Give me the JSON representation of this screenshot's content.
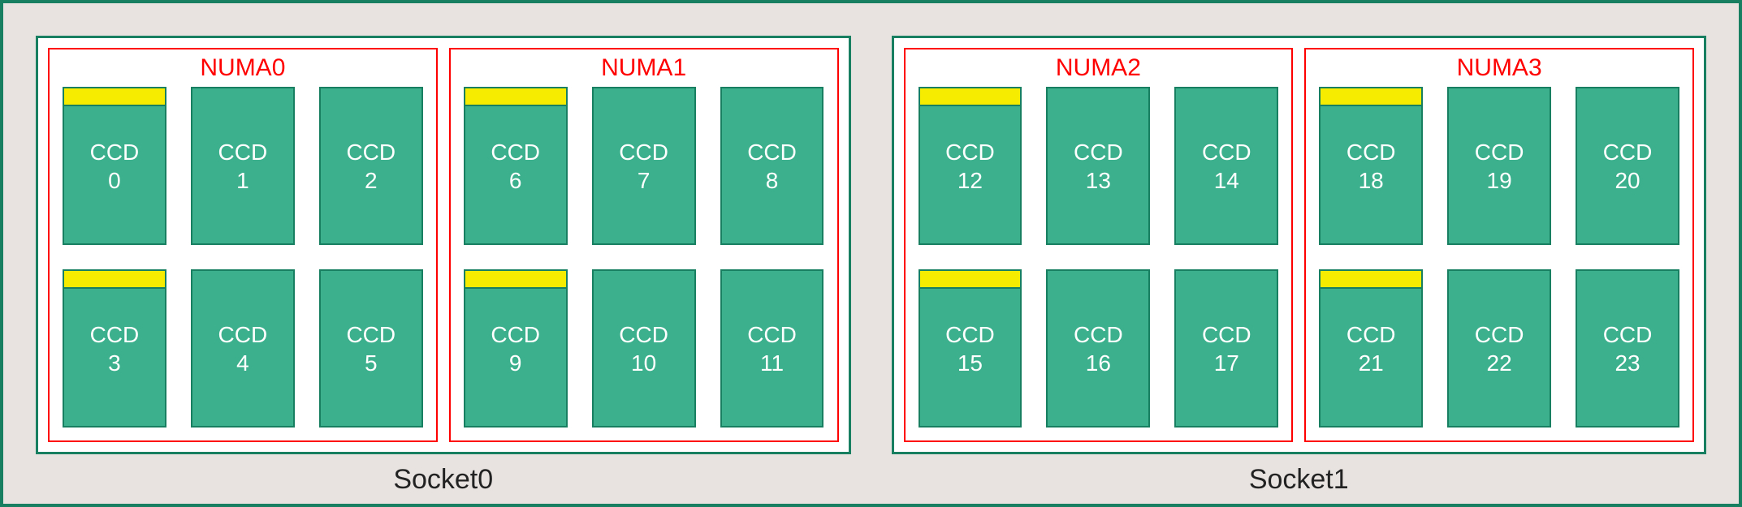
{
  "diagram": {
    "type": "infographic",
    "background_color": "#e8e3e0",
    "outer_border_color": "#188060",
    "socket_border_color": "#188060",
    "socket_background": "#ffffff",
    "numa_border_color": "#ff0000",
    "numa_title_color": "#ff0000",
    "ccd_fill_color": "#3cb08c",
    "ccd_border_color": "#188060",
    "ccd_text_color": "#ffffff",
    "highlight_color": "#f6ec00",
    "socket_label_color": "#222222",
    "ccd_prefix": "CCD",
    "title_fontsize": 30,
    "ccd_fontsize": 28,
    "socket_label_fontsize": 34,
    "grid": {
      "cols": 3,
      "rows": 2
    },
    "sockets": [
      {
        "label": "Socket0",
        "numas": [
          {
            "title": "NUMA0",
            "ccds": [
              {
                "id": 0,
                "highlighted": true
              },
              {
                "id": 1,
                "highlighted": false
              },
              {
                "id": 2,
                "highlighted": false
              },
              {
                "id": 3,
                "highlighted": true
              },
              {
                "id": 4,
                "highlighted": false
              },
              {
                "id": 5,
                "highlighted": false
              }
            ]
          },
          {
            "title": "NUMA1",
            "ccds": [
              {
                "id": 6,
                "highlighted": true
              },
              {
                "id": 7,
                "highlighted": false
              },
              {
                "id": 8,
                "highlighted": false
              },
              {
                "id": 9,
                "highlighted": true
              },
              {
                "id": 10,
                "highlighted": false
              },
              {
                "id": 11,
                "highlighted": false
              }
            ]
          }
        ]
      },
      {
        "label": "Socket1",
        "numas": [
          {
            "title": "NUMA2",
            "ccds": [
              {
                "id": 12,
                "highlighted": true
              },
              {
                "id": 13,
                "highlighted": false
              },
              {
                "id": 14,
                "highlighted": false
              },
              {
                "id": 15,
                "highlighted": true
              },
              {
                "id": 16,
                "highlighted": false
              },
              {
                "id": 17,
                "highlighted": false
              }
            ]
          },
          {
            "title": "NUMA3",
            "ccds": [
              {
                "id": 18,
                "highlighted": true
              },
              {
                "id": 19,
                "highlighted": false
              },
              {
                "id": 20,
                "highlighted": false
              },
              {
                "id": 21,
                "highlighted": true
              },
              {
                "id": 22,
                "highlighted": false
              },
              {
                "id": 23,
                "highlighted": false
              }
            ]
          }
        ]
      }
    ]
  }
}
